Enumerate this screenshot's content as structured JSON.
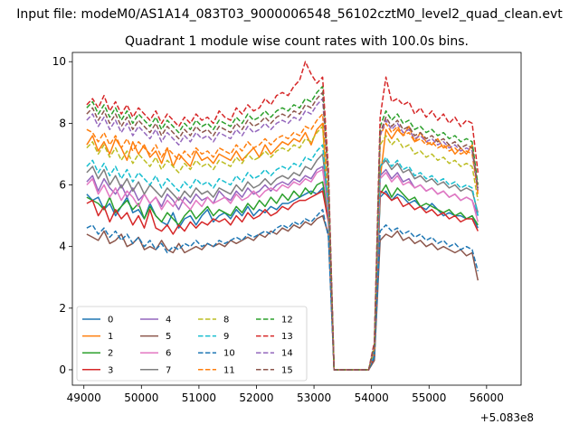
{
  "chart_data": {
    "type": "line",
    "suptitle": "Input file: modeM0/AS1A14_083T03_9000006548_56102cztM0_level2_quad_clean.evt",
    "title": "Quadrant 1 module wise count rates with 100.0s bins.",
    "xlabel": "",
    "ylabel": "",
    "x_offset_label": "+5.083e8",
    "xlim": [
      48800,
      56600
    ],
    "ylim": [
      -0.5,
      10.3
    ],
    "xticks": [
      49000,
      50000,
      51000,
      52000,
      53000,
      54000,
      55000,
      56000
    ],
    "yticks": [
      0,
      2,
      4,
      6,
      8,
      10
    ],
    "grid": false,
    "legend": {
      "placement": "lower-left",
      "columns": 4
    },
    "x_start": 49050,
    "x_step": 100,
    "series": [
      {
        "name": "0",
        "color": "#1f77b4",
        "dash": "solid",
        "values": [
          5.7,
          5.5,
          5.6,
          5.2,
          5.4,
          5.0,
          5.3,
          5.6,
          5.1,
          5.2,
          4.9,
          5.4,
          5.0,
          4.8,
          4.7,
          5.1,
          4.6,
          4.9,
          5.0,
          4.7,
          5.0,
          5.2,
          4.8,
          5.0,
          5.1,
          4.9,
          5.2,
          5.0,
          5.3,
          5.0,
          5.2,
          5.1,
          5.3,
          5.2,
          5.4,
          5.4,
          5.5,
          5.6,
          5.7,
          5.8,
          5.7,
          5.9,
          5.0,
          0.0,
          0.0,
          0.0,
          0.0,
          0.0,
          0.0,
          0.0,
          0.4,
          5.6,
          5.8,
          5.5,
          5.7,
          5.6,
          5.4,
          5.5,
          5.3,
          5.2,
          5.4,
          5.2,
          5.0,
          5.1,
          5.0,
          5.0,
          4.9,
          5.0,
          4.6
        ]
      },
      {
        "name": "1",
        "color": "#ff7f0e",
        "dash": "solid",
        "values": [
          7.3,
          7.6,
          7.1,
          7.4,
          7.0,
          7.5,
          7.2,
          6.8,
          7.4,
          7.0,
          7.3,
          6.9,
          7.1,
          6.7,
          7.2,
          6.6,
          7.0,
          6.8,
          6.6,
          7.1,
          6.8,
          6.9,
          6.7,
          7.0,
          6.9,
          6.8,
          7.1,
          6.8,
          7.0,
          7.2,
          6.9,
          7.3,
          7.0,
          7.2,
          7.4,
          7.3,
          7.5,
          7.4,
          7.7,
          7.3,
          7.8,
          8.0,
          4.8,
          0.0,
          0.0,
          0.0,
          0.0,
          0.0,
          0.0,
          0.0,
          0.7,
          6.2,
          7.8,
          7.5,
          7.8,
          7.6,
          7.9,
          7.4,
          7.7,
          7.4,
          7.3,
          7.5,
          7.2,
          7.3,
          7.0,
          7.2,
          7.0,
          7.3,
          5.8
        ]
      },
      {
        "name": "2",
        "color": "#2ca02c",
        "dash": "solid",
        "values": [
          5.6,
          5.5,
          5.4,
          5.2,
          5.6,
          5.1,
          5.3,
          5.5,
          5.2,
          5.4,
          4.9,
          5.3,
          5.0,
          4.8,
          5.1,
          4.9,
          4.7,
          5.0,
          5.2,
          4.9,
          5.1,
          5.3,
          5.0,
          5.2,
          5.1,
          5.0,
          5.3,
          5.1,
          5.4,
          5.2,
          5.5,
          5.3,
          5.6,
          5.4,
          5.7,
          5.5,
          5.8,
          5.6,
          5.9,
          5.7,
          6.0,
          6.1,
          5.0,
          0.0,
          0.0,
          0.0,
          0.0,
          0.0,
          0.0,
          0.0,
          0.5,
          5.7,
          6.0,
          5.6,
          5.9,
          5.7,
          5.5,
          5.6,
          5.3,
          5.4,
          5.3,
          5.2,
          5.1,
          5.2,
          5.0,
          5.1,
          4.9,
          5.0,
          4.7
        ]
      },
      {
        "name": "3",
        "color": "#d62728",
        "dash": "solid",
        "values": [
          5.4,
          5.5,
          5.0,
          5.3,
          4.8,
          5.2,
          4.9,
          5.1,
          4.7,
          5.0,
          4.6,
          5.2,
          4.6,
          4.5,
          4.7,
          4.4,
          4.7,
          4.5,
          4.8,
          4.6,
          4.8,
          4.7,
          4.9,
          4.8,
          4.9,
          4.7,
          5.0,
          4.8,
          5.1,
          4.9,
          5.0,
          5.2,
          5.0,
          5.1,
          5.3,
          5.2,
          5.4,
          5.5,
          5.5,
          5.6,
          5.7,
          5.8,
          4.8,
          0.0,
          0.0,
          0.0,
          0.0,
          0.0,
          0.0,
          0.0,
          0.4,
          5.8,
          5.7,
          5.5,
          5.6,
          5.3,
          5.4,
          5.2,
          5.3,
          5.1,
          5.2,
          5.0,
          5.1,
          4.9,
          5.0,
          4.8,
          4.9,
          4.9,
          4.5
        ]
      },
      {
        "name": "4",
        "color": "#9467bd",
        "dash": "solid",
        "values": [
          6.1,
          6.3,
          5.8,
          6.2,
          5.9,
          5.7,
          6.0,
          5.6,
          5.9,
          5.5,
          5.7,
          5.4,
          5.6,
          5.3,
          5.7,
          5.5,
          5.2,
          5.6,
          5.4,
          5.7,
          5.5,
          5.6,
          5.4,
          5.8,
          5.6,
          5.5,
          5.8,
          5.6,
          5.9,
          5.7,
          5.8,
          6.0,
          5.8,
          6.0,
          6.1,
          6.0,
          6.2,
          6.1,
          6.3,
          6.2,
          6.5,
          6.6,
          5.0,
          0.0,
          0.0,
          0.0,
          0.0,
          0.0,
          0.0,
          0.0,
          0.6,
          6.3,
          6.5,
          6.2,
          6.4,
          6.1,
          6.2,
          5.9,
          6.0,
          5.8,
          5.9,
          5.7,
          5.8,
          5.6,
          5.7,
          5.5,
          5.6,
          5.5,
          5.0
        ]
      },
      {
        "name": "5",
        "color": "#8c564b",
        "dash": "solid",
        "values": [
          4.4,
          4.3,
          4.2,
          4.5,
          4.1,
          4.2,
          4.4,
          4.0,
          4.1,
          4.3,
          3.9,
          4.0,
          3.9,
          4.2,
          3.9,
          3.8,
          4.1,
          3.8,
          3.9,
          4.0,
          3.9,
          4.1,
          4.0,
          4.1,
          4.0,
          4.2,
          4.1,
          4.2,
          4.3,
          4.2,
          4.4,
          4.3,
          4.5,
          4.4,
          4.6,
          4.5,
          4.7,
          4.6,
          4.8,
          4.7,
          4.9,
          5.0,
          4.4,
          0.0,
          0.0,
          0.0,
          0.0,
          0.0,
          0.0,
          0.0,
          0.3,
          4.2,
          4.4,
          4.3,
          4.5,
          4.2,
          4.3,
          4.1,
          4.2,
          4.0,
          4.1,
          3.9,
          4.0,
          3.9,
          3.8,
          3.9,
          3.7,
          3.8,
          2.9
        ]
      },
      {
        "name": "6",
        "color": "#e377c2",
        "dash": "solid",
        "values": [
          6.0,
          6.2,
          5.7,
          6.0,
          5.6,
          5.9,
          5.5,
          5.8,
          5.6,
          5.3,
          5.7,
          5.4,
          5.6,
          5.2,
          5.5,
          5.3,
          5.6,
          5.4,
          5.2,
          5.5,
          5.3,
          5.6,
          5.4,
          5.5,
          5.6,
          5.4,
          5.7,
          5.5,
          5.6,
          5.8,
          5.6,
          5.8,
          5.9,
          5.8,
          6.0,
          5.9,
          6.1,
          6.0,
          6.2,
          6.1,
          6.4,
          6.5,
          5.1,
          0.0,
          0.0,
          0.0,
          0.0,
          0.0,
          0.0,
          0.0,
          0.6,
          6.2,
          6.4,
          6.1,
          6.3,
          6.0,
          6.1,
          5.9,
          6.0,
          5.8,
          5.9,
          5.7,
          5.8,
          5.6,
          5.7,
          5.5,
          5.6,
          5.5,
          4.8
        ]
      },
      {
        "name": "7",
        "color": "#7f7f7f",
        "dash": "solid",
        "values": [
          6.4,
          6.6,
          6.2,
          6.5,
          6.0,
          6.3,
          5.9,
          6.2,
          5.8,
          6.1,
          5.7,
          6.0,
          5.8,
          5.6,
          5.9,
          5.7,
          5.5,
          5.8,
          5.6,
          5.9,
          5.7,
          5.8,
          5.6,
          5.9,
          5.8,
          5.7,
          6.0,
          5.8,
          6.1,
          5.9,
          6.0,
          6.2,
          6.0,
          6.2,
          6.3,
          6.2,
          6.4,
          6.3,
          6.6,
          6.5,
          6.8,
          7.0,
          5.3,
          0.0,
          0.0,
          0.0,
          0.0,
          0.0,
          0.0,
          0.0,
          0.6,
          6.6,
          6.8,
          6.5,
          6.7,
          6.4,
          6.5,
          6.2,
          6.3,
          6.1,
          6.2,
          6.0,
          6.1,
          5.9,
          6.0,
          5.8,
          5.9,
          5.8,
          5.1
        ]
      },
      {
        "name": "8",
        "color": "#bcbd22",
        "dash": "dashed",
        "values": [
          7.2,
          7.4,
          7.0,
          7.3,
          6.9,
          7.2,
          6.8,
          7.1,
          6.7,
          7.0,
          6.8,
          6.6,
          6.9,
          6.5,
          6.8,
          6.6,
          6.4,
          6.7,
          6.5,
          6.8,
          6.6,
          6.7,
          6.5,
          6.8,
          6.7,
          6.6,
          6.9,
          6.7,
          7.0,
          6.8,
          6.9,
          7.1,
          6.9,
          7.1,
          7.2,
          7.1,
          7.3,
          7.2,
          7.5,
          7.4,
          7.7,
          7.9,
          5.6,
          0.0,
          0.0,
          0.0,
          0.0,
          0.0,
          0.0,
          0.0,
          0.7,
          7.3,
          7.6,
          7.3,
          7.5,
          7.2,
          7.3,
          7.0,
          7.1,
          6.9,
          7.0,
          6.8,
          6.9,
          6.7,
          6.8,
          6.6,
          6.7,
          6.6,
          5.5
        ]
      },
      {
        "name": "9",
        "color": "#17becf",
        "dash": "dashed",
        "values": [
          6.6,
          6.8,
          6.4,
          6.7,
          6.3,
          6.6,
          6.2,
          6.5,
          6.1,
          6.4,
          6.2,
          6.0,
          6.3,
          5.9,
          6.2,
          6.0,
          5.8,
          6.1,
          5.9,
          6.2,
          6.0,
          6.1,
          5.9,
          6.2,
          6.1,
          6.0,
          6.3,
          6.1,
          6.4,
          6.2,
          6.3,
          6.5,
          6.3,
          6.5,
          6.6,
          6.5,
          6.7,
          6.6,
          6.9,
          6.8,
          7.1,
          7.3,
          5.3,
          0.0,
          0.0,
          0.0,
          0.0,
          0.0,
          0.0,
          0.0,
          0.6,
          6.6,
          6.9,
          6.6,
          6.8,
          6.5,
          6.6,
          6.3,
          6.4,
          6.2,
          6.3,
          6.1,
          6.2,
          6.0,
          6.1,
          5.9,
          6.0,
          5.9,
          5.0
        ]
      },
      {
        "name": "10",
        "color": "#1f77b4",
        "dash": "dashed",
        "values": [
          4.6,
          4.7,
          4.4,
          4.6,
          4.3,
          4.5,
          4.2,
          4.4,
          4.1,
          4.3,
          4.0,
          4.2,
          3.9,
          4.1,
          3.8,
          4.0,
          3.9,
          4.1,
          4.0,
          4.2,
          4.0,
          4.1,
          4.0,
          4.2,
          4.1,
          4.2,
          4.3,
          4.2,
          4.4,
          4.3,
          4.4,
          4.5,
          4.4,
          4.6,
          4.7,
          4.6,
          4.8,
          4.7,
          4.9,
          4.8,
          5.0,
          5.2,
          4.3,
          0.0,
          0.0,
          0.0,
          0.0,
          0.0,
          0.0,
          0.0,
          0.4,
          4.5,
          4.7,
          4.5,
          4.6,
          4.4,
          4.5,
          4.3,
          4.4,
          4.2,
          4.3,
          4.1,
          4.2,
          4.0,
          4.1,
          3.9,
          4.0,
          3.9,
          3.2
        ]
      },
      {
        "name": "11",
        "color": "#ff7f0e",
        "dash": "dashed",
        "values": [
          7.8,
          7.7,
          7.4,
          7.7,
          7.3,
          7.6,
          7.2,
          7.5,
          7.1,
          7.4,
          7.2,
          7.0,
          7.3,
          6.9,
          7.2,
          7.0,
          6.8,
          7.1,
          6.9,
          7.2,
          7.0,
          7.1,
          6.9,
          7.2,
          7.1,
          7.0,
          7.3,
          7.1,
          7.4,
          7.2,
          7.3,
          7.5,
          7.3,
          7.5,
          7.6,
          7.5,
          7.7,
          7.6,
          7.9,
          7.8,
          8.1,
          8.3,
          5.9,
          0.0,
          0.0,
          0.0,
          0.0,
          0.0,
          0.0,
          0.0,
          0.7,
          7.6,
          8.0,
          7.7,
          7.9,
          7.6,
          7.7,
          7.4,
          7.5,
          7.3,
          7.4,
          7.2,
          7.3,
          7.1,
          7.2,
          7.0,
          7.1,
          7.0,
          5.7
        ]
      },
      {
        "name": "12",
        "color": "#2ca02c",
        "dash": "dashed",
        "values": [
          8.5,
          8.7,
          8.3,
          8.6,
          8.2,
          8.5,
          8.1,
          8.4,
          8.0,
          8.3,
          8.1,
          7.9,
          8.2,
          7.8,
          8.1,
          7.9,
          7.7,
          8.0,
          7.8,
          8.1,
          7.9,
          8.0,
          7.8,
          8.1,
          8.0,
          7.9,
          8.2,
          8.0,
          8.3,
          8.1,
          8.2,
          8.4,
          8.2,
          8.4,
          8.5,
          8.4,
          8.6,
          8.5,
          8.8,
          8.7,
          9.0,
          9.2,
          6.3,
          0.0,
          0.0,
          0.0,
          0.0,
          0.0,
          0.0,
          0.0,
          0.8,
          7.9,
          8.4,
          8.1,
          8.3,
          8.0,
          8.1,
          7.8,
          7.9,
          7.7,
          7.8,
          7.6,
          7.7,
          7.5,
          7.6,
          7.4,
          7.5,
          7.4,
          6.0
        ]
      },
      {
        "name": "13",
        "color": "#d62728",
        "dash": "dashed",
        "values": [
          8.6,
          8.8,
          8.5,
          8.9,
          8.4,
          8.7,
          8.3,
          8.6,
          8.2,
          8.5,
          8.3,
          8.1,
          8.4,
          8.0,
          8.3,
          8.1,
          7.9,
          8.2,
          8.0,
          8.3,
          8.1,
          8.2,
          8.0,
          8.4,
          8.2,
          8.1,
          8.5,
          8.3,
          8.6,
          8.4,
          8.5,
          8.8,
          8.6,
          8.9,
          9.0,
          8.9,
          9.2,
          9.4,
          10.0,
          9.6,
          9.3,
          9.5,
          6.5,
          0.0,
          0.0,
          0.0,
          0.0,
          0.0,
          0.0,
          0.0,
          0.9,
          8.2,
          9.5,
          8.7,
          8.8,
          8.6,
          8.7,
          8.3,
          8.5,
          8.2,
          8.4,
          8.1,
          8.3,
          8.0,
          8.2,
          7.9,
          8.1,
          8.0,
          6.4
        ]
      },
      {
        "name": "14",
        "color": "#9467bd",
        "dash": "dashed",
        "values": [
          8.1,
          8.3,
          7.9,
          8.2,
          7.8,
          8.1,
          7.7,
          8.0,
          7.6,
          7.9,
          7.7,
          7.5,
          7.8,
          7.4,
          7.7,
          7.5,
          7.3,
          7.6,
          7.4,
          7.7,
          7.5,
          7.6,
          7.4,
          7.7,
          7.6,
          7.5,
          7.8,
          7.6,
          7.9,
          7.7,
          7.8,
          8.0,
          7.8,
          8.0,
          8.1,
          8.0,
          8.2,
          8.1,
          8.4,
          8.3,
          8.6,
          8.8,
          6.1,
          0.0,
          0.0,
          0.0,
          0.0,
          0.0,
          0.0,
          0.0,
          0.8,
          7.6,
          8.1,
          7.8,
          8.0,
          7.7,
          7.8,
          7.5,
          7.6,
          7.4,
          7.5,
          7.3,
          7.4,
          7.2,
          7.3,
          7.1,
          7.2,
          7.1,
          5.8
        ]
      },
      {
        "name": "15",
        "color": "#8c564b",
        "dash": "dashed",
        "values": [
          8.3,
          8.5,
          8.1,
          8.4,
          8.0,
          8.3,
          7.9,
          8.2,
          7.8,
          8.1,
          7.9,
          7.7,
          8.0,
          7.6,
          7.9,
          7.7,
          7.5,
          7.8,
          7.6,
          7.9,
          7.7,
          7.8,
          7.6,
          7.9,
          7.8,
          7.7,
          8.0,
          7.8,
          8.1,
          7.9,
          8.0,
          8.2,
          8.0,
          8.2,
          8.3,
          8.2,
          8.4,
          8.3,
          8.6,
          8.5,
          8.8,
          9.0,
          6.2,
          0.0,
          0.0,
          0.0,
          0.0,
          0.0,
          0.0,
          0.0,
          0.8,
          7.7,
          8.2,
          7.9,
          8.1,
          7.8,
          7.9,
          7.6,
          7.7,
          7.5,
          7.6,
          7.4,
          7.5,
          7.3,
          7.4,
          7.2,
          7.3,
          7.2,
          5.9
        ]
      }
    ]
  }
}
